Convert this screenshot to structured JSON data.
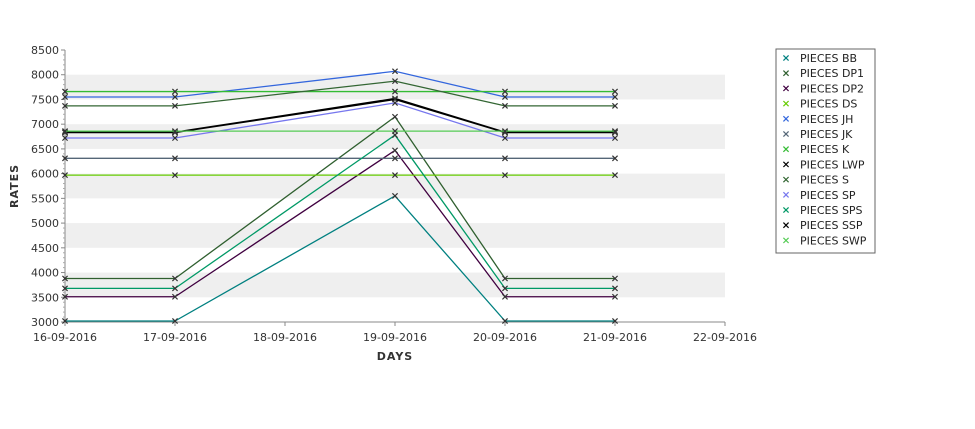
{
  "chart_data": {
    "type": "line",
    "xlabel": "DAYS",
    "ylabel": "RATES",
    "x_ticks": [
      "16-09-2016",
      "17-09-2016",
      "18-09-2016",
      "19-09-2016",
      "20-09-2016",
      "21-09-2016",
      "22-09-2016"
    ],
    "y_ticks": [
      3000,
      3500,
      4000,
      4500,
      5000,
      5500,
      6000,
      6500,
      7000,
      7500,
      8000,
      8500
    ],
    "ylim": [
      3000,
      8500
    ],
    "grid": "horizontal alternating bands",
    "legend_position": "right",
    "x": [
      "16-09-2016",
      "17-09-2016",
      "19-09-2016",
      "20-09-2016",
      "21-09-2016"
    ],
    "series": [
      {
        "name": "PIECES BB",
        "color": "#008080",
        "values": [
          3020,
          3020,
          5550,
          3020,
          3020
        ]
      },
      {
        "name": "PIECES DP1",
        "color": "#2f5f2f",
        "values": [
          3880,
          3880,
          7150,
          3880,
          3880
        ]
      },
      {
        "name": "PIECES DP2",
        "color": "#400040",
        "values": [
          3510,
          3510,
          6470,
          3510,
          3510
        ]
      },
      {
        "name": "PIECES DS",
        "color": "#66cc00",
        "values": [
          5970,
          5970,
          5970,
          5970,
          5970
        ]
      },
      {
        "name": "PIECES JH",
        "color": "#3366dd",
        "values": [
          7550,
          7550,
          8070,
          7550,
          7550
        ]
      },
      {
        "name": "PIECES JK",
        "color": "#556677",
        "values": [
          6310,
          6310,
          6310,
          6310,
          6310
        ]
      },
      {
        "name": "PIECES K",
        "color": "#33bb33",
        "values": [
          7660,
          7660,
          7660,
          7660,
          7660
        ]
      },
      {
        "name": "PIECES LWP",
        "color": "#000000",
        "values": [
          6840,
          6840,
          7520,
          6840,
          6840
        ]
      },
      {
        "name": "PIECES S",
        "color": "#336633",
        "values": [
          7370,
          7370,
          7870,
          7370,
          7370
        ]
      },
      {
        "name": "PIECES SP",
        "color": "#7777ee",
        "values": [
          6720,
          6720,
          7430,
          6720,
          6720
        ]
      },
      {
        "name": "PIECES SPS",
        "color": "#009966",
        "values": [
          3680,
          3680,
          6780,
          3680,
          3680
        ]
      },
      {
        "name": "PIECES SSP",
        "color": "#000000",
        "values": [
          6830,
          6830,
          7500,
          6830,
          6830
        ]
      },
      {
        "name": "PIECES SWP",
        "color": "#55cc55",
        "values": [
          6860,
          6860,
          6860,
          6860,
          6860
        ]
      }
    ]
  }
}
